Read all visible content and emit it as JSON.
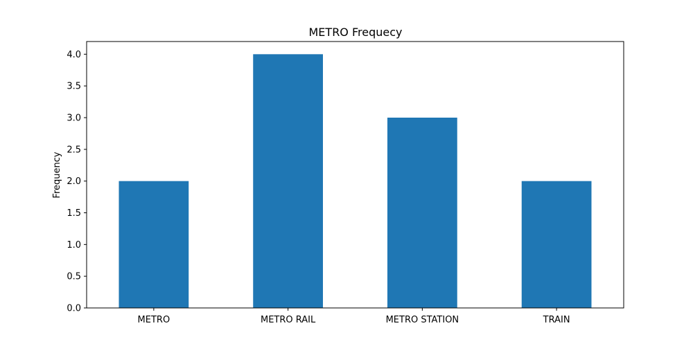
{
  "chart_data": {
    "type": "bar",
    "title": "METRO Frequecy",
    "xlabel": "",
    "ylabel": "Frequency",
    "categories": [
      "METRO",
      "METRO RAIL",
      "METRO STATION",
      "TRAIN"
    ],
    "values": [
      2,
      4,
      3,
      2
    ],
    "ylim": [
      0,
      4.2
    ],
    "yticks": [
      "0.0",
      "0.5",
      "1.0",
      "1.5",
      "2.0",
      "2.5",
      "3.0",
      "3.5",
      "4.0"
    ],
    "grid": false,
    "legend": "none",
    "bar_color": "#1f77b4"
  }
}
